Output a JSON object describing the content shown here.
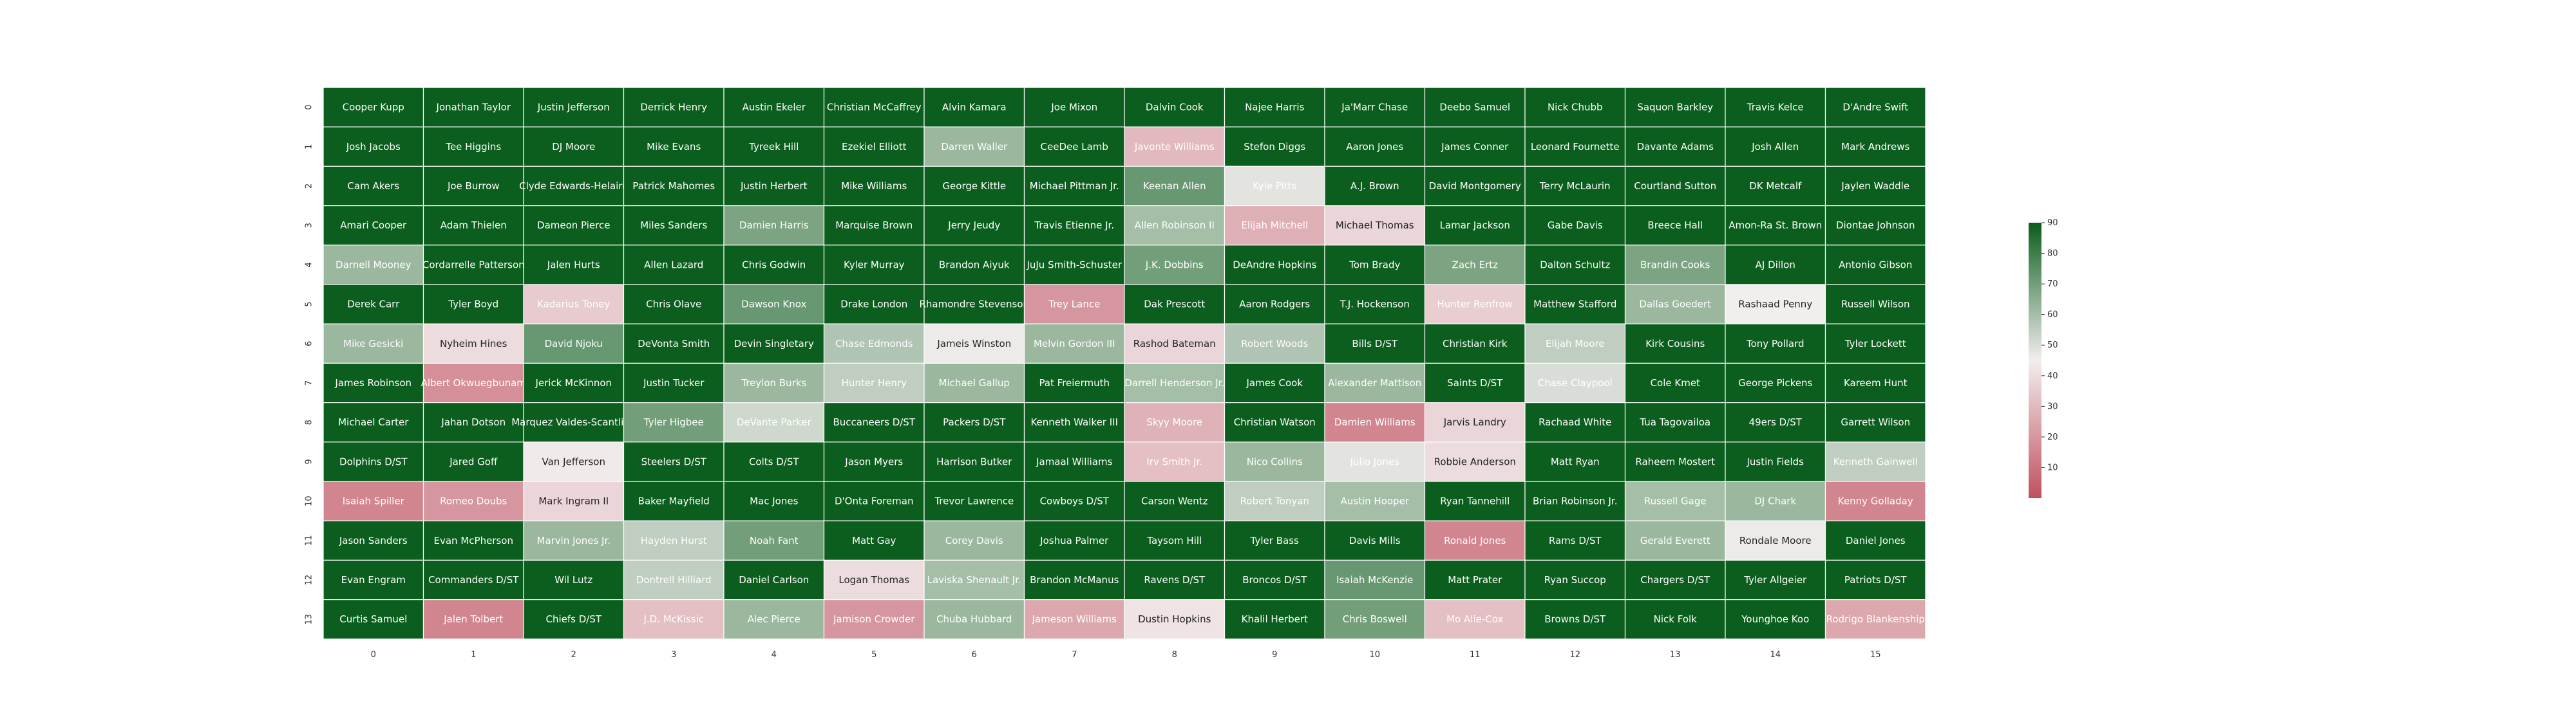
{
  "chart_data": {
    "type": "heatmap",
    "x_ticks": [
      "0",
      "1",
      "2",
      "3",
      "4",
      "5",
      "6",
      "7",
      "8",
      "9",
      "10",
      "11",
      "12",
      "13",
      "14",
      "15"
    ],
    "y_ticks": [
      "0",
      "1",
      "2",
      "3",
      "4",
      "5",
      "6",
      "7",
      "8",
      "9",
      "10",
      "11",
      "12",
      "13"
    ],
    "colorbar": {
      "ticks": [
        10,
        20,
        30,
        40,
        50,
        60,
        70,
        80,
        90
      ],
      "range": [
        0,
        90
      ],
      "colors": {
        "low": "#c0505f",
        "mid": "#f2eeee",
        "high": "#0b5e1d"
      }
    },
    "rows": [
      {
        "names": [
          "Cooper Kupp",
          "Jonathan Taylor",
          "Justin Jefferson",
          "Derrick Henry",
          "Austin Ekeler",
          "Christian McCaffrey",
          "Alvin Kamara",
          "Joe Mixon",
          "Dalvin Cook",
          "Najee Harris",
          "Ja'Marr Chase",
          "Deebo Samuel",
          "Nick Chubb",
          "Saquon Barkley",
          "Travis Kelce",
          "D'Andre Swift"
        ],
        "values": [
          90,
          90,
          90,
          90,
          90,
          90,
          90,
          90,
          90,
          90,
          90,
          90,
          90,
          90,
          90,
          90
        ]
      },
      {
        "names": [
          "Josh Jacobs",
          "Tee Higgins",
          "DJ Moore",
          "Mike Evans",
          "Tyreek Hill",
          "Ezekiel Elliott",
          "Darren Waller",
          "CeeDee Lamb",
          "Javonte Williams",
          "Stefon Diggs",
          "Aaron Jones",
          "James Conner",
          "Leonard Fournette",
          "Davante Adams",
          "Josh Allen",
          "Mark Andrews"
        ],
        "values": [
          90,
          90,
          90,
          90,
          90,
          90,
          62,
          90,
          30,
          90,
          90,
          90,
          90,
          90,
          90,
          90
        ]
      },
      {
        "names": [
          "Cam Akers",
          "Joe Burrow",
          "Clyde Edwards-Helaire",
          "Patrick Mahomes",
          "Justin Herbert",
          "Mike Williams",
          "George Kittle",
          "Michael Pittman Jr.",
          "Keenan Allen",
          "Kyle Pitts",
          "A.J. Brown",
          "David Montgomery",
          "Terry McLaurin",
          "Courtland Sutton",
          "DK Metcalf",
          "Jaylen Waddle"
        ],
        "values": [
          90,
          90,
          90,
          90,
          90,
          90,
          90,
          90,
          72,
          48,
          90,
          90,
          90,
          90,
          90,
          90
        ]
      },
      {
        "names": [
          "Amari Cooper",
          "Adam Thielen",
          "Dameon Pierce",
          "Miles Sanders",
          "Damien Harris",
          "Marquise Brown",
          "Jerry Jeudy",
          "Travis Etienne Jr.",
          "Allen Robinson II",
          "Elijah Mitchell",
          "Michael Thomas",
          "Lamar Jackson",
          "Gabe Davis",
          "Breece Hall",
          "Amon-Ra St. Brown",
          "Diontae Johnson"
        ],
        "values": [
          90,
          90,
          90,
          90,
          68,
          90,
          90,
          90,
          60,
          27,
          38,
          90,
          90,
          90,
          90,
          90
        ]
      },
      {
        "names": [
          "Darnell Mooney",
          "Cordarrelle Patterson",
          "Jalen Hurts",
          "Allen Lazard",
          "Chris Godwin",
          "Kyler Murray",
          "Brandon Aiyuk",
          "JuJu Smith-Schuster",
          "J.K. Dobbins",
          "DeAndre Hopkins",
          "Tom Brady",
          "Zach Ertz",
          "Dalton Schultz",
          "Brandin Cooks",
          "AJ Dillon",
          "Antonio Gibson"
        ],
        "values": [
          62,
          90,
          90,
          90,
          90,
          90,
          90,
          90,
          70,
          90,
          90,
          68,
          90,
          68,
          90,
          90
        ]
      },
      {
        "names": [
          "Derek Carr",
          "Tyler Boyd",
          "Kadarius Toney",
          "Chris Olave",
          "Dawson Knox",
          "Drake London",
          "Rhamondre Stevenson",
          "Trey Lance",
          "Dak Prescott",
          "Aaron Rodgers",
          "T.J. Hockenson",
          "Hunter Renfrow",
          "Matthew Stafford",
          "Dallas Goedert",
          "Rashaad Penny",
          "Russell Wilson"
        ],
        "values": [
          90,
          90,
          35,
          90,
          72,
          90,
          90,
          20,
          90,
          90,
          90,
          36,
          90,
          62,
          45,
          90
        ]
      },
      {
        "names": [
          "Mike Gesicki",
          "Nyheim Hines",
          "David Njoku",
          "DeVonta Smith",
          "Devin Singletary",
          "Chase Edmonds",
          "Jameis Winston",
          "Melvin Gordon III",
          "Rashod Bateman",
          "Robert Woods",
          "Bills D/ST",
          "Christian Kirk",
          "Elijah Moore",
          "Kirk Cousins",
          "Tony Pollard",
          "Tyler Lockett"
        ],
        "values": [
          62,
          40,
          72,
          90,
          90,
          58,
          46,
          62,
          38,
          58,
          90,
          90,
          55,
          90,
          90,
          90
        ]
      },
      {
        "names": [
          "James Robinson",
          "Albert Okwuegbunam",
          "Jerick McKinnon",
          "Justin Tucker",
          "Treylon Burks",
          "Hunter Henry",
          "Michael Gallup",
          "Pat Freiermuth",
          "Darrell Henderson Jr.",
          "James Cook",
          "Alexander Mattison",
          "Saints D/ST",
          "Chase Claypool",
          "Cole Kmet",
          "George Pickens",
          "Kareem Hunt"
        ],
        "values": [
          90,
          18,
          90,
          90,
          62,
          55,
          62,
          90,
          60,
          90,
          62,
          90,
          50,
          90,
          90,
          90
        ]
      },
      {
        "names": [
          "Michael Carter",
          "Jahan Dotson",
          "Marquez Valdes-Scantling",
          "Tyler Higbee",
          "DeVante Parker",
          "Buccaneers D/ST",
          "Packers D/ST",
          "Kenneth Walker III",
          "Skyy Moore",
          "Christian Watson",
          "Damien Williams",
          "Jarvis Landry",
          "Rachaad White",
          "Tua Tagovailoa",
          "49ers D/ST",
          "Garrett Wilson"
        ],
        "values": [
          90,
          90,
          90,
          70,
          52,
          90,
          90,
          90,
          28,
          90,
          15,
          38,
          90,
          90,
          90,
          90
        ]
      },
      {
        "names": [
          "Dolphins D/ST",
          "Jared Goff",
          "Van Jefferson",
          "Steelers D/ST",
          "Colts D/ST",
          "Jason Myers",
          "Harrison Butker",
          "Jamaal Williams",
          "Irv Smith Jr.",
          "Nico Collins",
          "Julio Jones",
          "Robbie Anderson",
          "Matt Ryan",
          "Raheem Mostert",
          "Justin Fields",
          "Kenneth Gainwell"
        ],
        "values": [
          90,
          90,
          44,
          90,
          90,
          90,
          90,
          90,
          32,
          62,
          48,
          40,
          90,
          90,
          90,
          55
        ]
      },
      {
        "names": [
          "Isaiah Spiller",
          "Romeo Doubs",
          "Mark Ingram II",
          "Baker Mayfield",
          "Mac Jones",
          "D'Onta Foreman",
          "Trevor Lawrence",
          "Cowboys D/ST",
          "Carson Wentz",
          "Robert Tonyan",
          "Austin Hooper",
          "Ryan Tannehill",
          "Brian Robinson Jr.",
          "Russell Gage",
          "DJ Chark",
          "Kenny Golladay"
        ],
        "values": [
          15,
          20,
          38,
          90,
          90,
          90,
          90,
          90,
          90,
          55,
          60,
          90,
          90,
          60,
          62,
          15
        ]
      },
      {
        "names": [
          "Jason Sanders",
          "Evan McPherson",
          "Marvin Jones Jr.",
          "Hayden Hurst",
          "Noah Fant",
          "Matt Gay",
          "Corey Davis",
          "Joshua Palmer",
          "Taysom Hill",
          "Tyler Bass",
          "Davis Mills",
          "Ronald Jones",
          "Rams D/ST",
          "Gerald Everett",
          "Rondale Moore",
          "Daniel Jones"
        ],
        "values": [
          90,
          90,
          62,
          55,
          70,
          90,
          62,
          90,
          90,
          90,
          90,
          15,
          90,
          62,
          46,
          90
        ]
      },
      {
        "names": [
          "Evan Engram",
          "Commanders D/ST",
          "Wil Lutz",
          "Dontrell Hilliard",
          "Daniel Carlson",
          "Logan Thomas",
          "Laviska Shenault Jr.",
          "Brandon McManus",
          "Ravens D/ST",
          "Broncos D/ST",
          "Isaiah McKenzie",
          "Matt Prater",
          "Ryan Succop",
          "Chargers D/ST",
          "Tyler Allgeier",
          "Patriots D/ST"
        ],
        "values": [
          90,
          90,
          90,
          55,
          90,
          40,
          60,
          90,
          90,
          90,
          72,
          90,
          90,
          90,
          90,
          90
        ]
      },
      {
        "names": [
          "Curtis Samuel",
          "Jalen Tolbert",
          "Chiefs D/ST",
          "J.D. McKissic",
          "Alec Pierce",
          "Jamison Crowder",
          "Chuba Hubbard",
          "Jameson Williams",
          "Dustin Hopkins",
          "Khalil Herbert",
          "Chris Boswell",
          "Mo Alie-Cox",
          "Browns D/ST",
          "Nick Folk",
          "Younghoe Koo",
          "Rodrigo Blankenship"
        ],
        "values": [
          90,
          15,
          90,
          32,
          62,
          20,
          62,
          25,
          42,
          90,
          70,
          32,
          90,
          90,
          90,
          25
        ]
      }
    ]
  }
}
